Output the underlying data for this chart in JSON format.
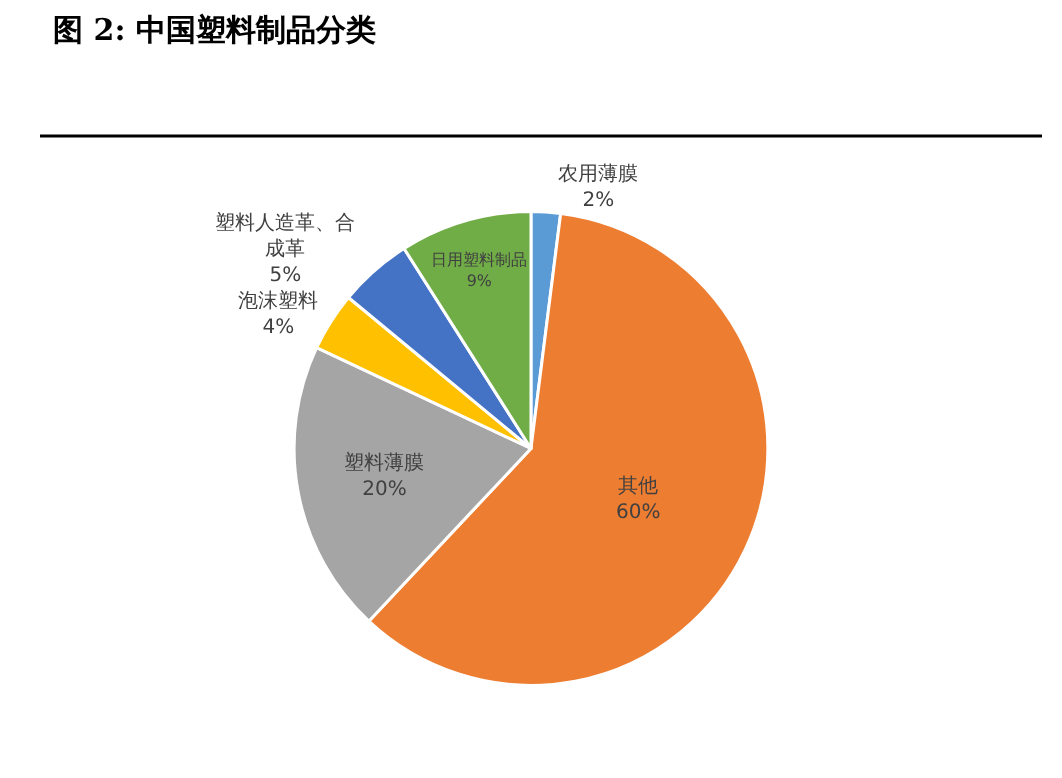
{
  "chart_data": {
    "type": "pie",
    "title": "图 2: 中国塑料制品分类",
    "categories": [
      "农用薄膜",
      "其他",
      "塑料薄膜",
      "泡沫塑料",
      "塑料人造革、合成革",
      "日用塑料制品"
    ],
    "values": [
      2,
      60,
      20,
      4,
      5,
      9
    ],
    "value_labels": [
      "2%",
      "60%",
      "20%",
      "4%",
      "5%",
      "9%"
    ],
    "colors": [
      "#5b9bd5",
      "#ed7d31",
      "#a5a5a5",
      "#ffc000",
      "#4472c4",
      "#70ad47"
    ],
    "legend": false
  }
}
